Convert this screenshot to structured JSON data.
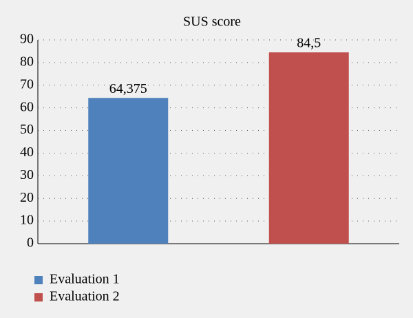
{
  "chart_data": {
    "type": "bar",
    "title": "SUS score",
    "categories": [
      null
    ],
    "series": [
      {
        "name": "Evaluation 1",
        "color": "#4f81bd",
        "values": [
          64.375
        ],
        "value_labels": [
          "64,375"
        ]
      },
      {
        "name": "Evaluation 2",
        "color": "#c0504d",
        "values": [
          84.5
        ],
        "value_labels": [
          "84,5"
        ]
      }
    ],
    "ylim": [
      0,
      90
    ],
    "yticks": [
      0,
      10,
      20,
      30,
      40,
      50,
      60,
      70,
      80,
      90
    ],
    "grid": true,
    "legend": "bottom"
  }
}
